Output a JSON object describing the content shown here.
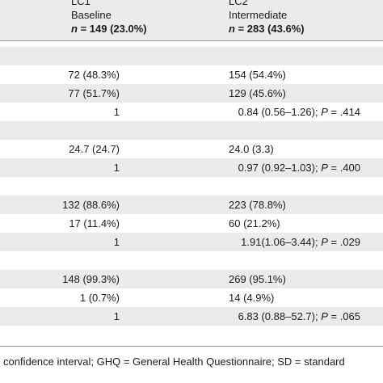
{
  "header": {
    "col1": {
      "name": "LC1",
      "label": "Baseline",
      "n_label": "n",
      "n_value": " = 149 (23.0%)"
    },
    "col2": {
      "name": "LC2",
      "label": "Intermediate",
      "n_label": "n",
      "n_value": " = 283 (43.6%)"
    }
  },
  "rows": [
    {
      "shaded": true,
      "lc1": "",
      "lc2": ""
    },
    {
      "shaded": false,
      "lc1": "72 (48.3%)",
      "lc2": "154 (54.4%)"
    },
    {
      "shaded": true,
      "lc1": "77 (51.7%)",
      "lc2": "129 (45.6%)"
    },
    {
      "shaded": false,
      "lc1": "1",
      "lc2": "0.84 (0.56–1.26); P = .414"
    },
    {
      "shaded": true,
      "lc1": "",
      "lc2": ""
    },
    {
      "shaded": false,
      "lc1": "24.7 (24.7)",
      "lc2": "24.0 (3.3)"
    },
    {
      "shaded": true,
      "lc1": "1",
      "lc2": "0.97 (0.92–1.03); P = .400"
    },
    {
      "shaded": false,
      "lc1": "",
      "lc2": ""
    },
    {
      "shaded": true,
      "lc1": "132 (88.6%)",
      "lc2": "223 (78.8%)"
    },
    {
      "shaded": false,
      "lc1": "17 (11.4%)",
      "lc2": "60 (21.2%)"
    },
    {
      "shaded": true,
      "lc1": "1",
      "lc2": "1.91(1.06–3.44); P = .029"
    },
    {
      "shaded": false,
      "lc1": "",
      "lc2": ""
    },
    {
      "shaded": true,
      "lc1": "148 (99.3%)",
      "lc2": "269 (95.1%)"
    },
    {
      "shaded": false,
      "lc1": "1 (0.7%)",
      "lc2": "14 (4.9%)"
    },
    {
      "shaded": true,
      "lc1": "1",
      "lc2": "6.83 (0.88–52.7); P = .065"
    }
  ],
  "footer": {
    "text": "confidence interval; GHQ = General Health Questionnaire; SD = standard"
  }
}
